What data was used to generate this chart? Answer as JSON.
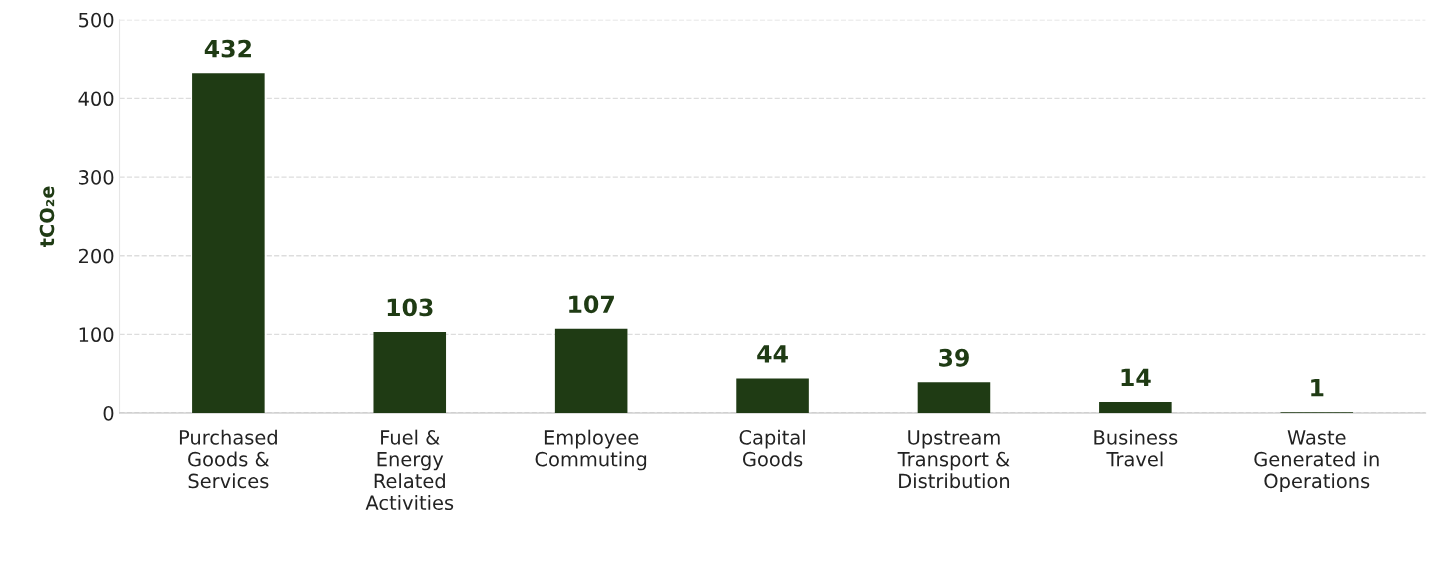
{
  "chart_data": {
    "type": "bar",
    "ylabel": "tCO₂e",
    "categories": [
      "Purchased\nGoods &\nServices",
      "Fuel &\nEnergy\nRelated\nActivities",
      "Employee\nCommuting",
      "Capital\nGoods",
      "Upstream\nTransport &\nDistribution",
      "Business\nTravel",
      "Waste\nGenerated in\nOperations"
    ],
    "values": [
      432,
      103,
      107,
      44,
      39,
      14,
      1
    ],
    "color": "#1f3b14",
    "ylim": [
      0,
      500
    ],
    "yticks": [
      0,
      100,
      200,
      300,
      400,
      500
    ],
    "grid": "y",
    "data_labels": true,
    "legend": false
  }
}
